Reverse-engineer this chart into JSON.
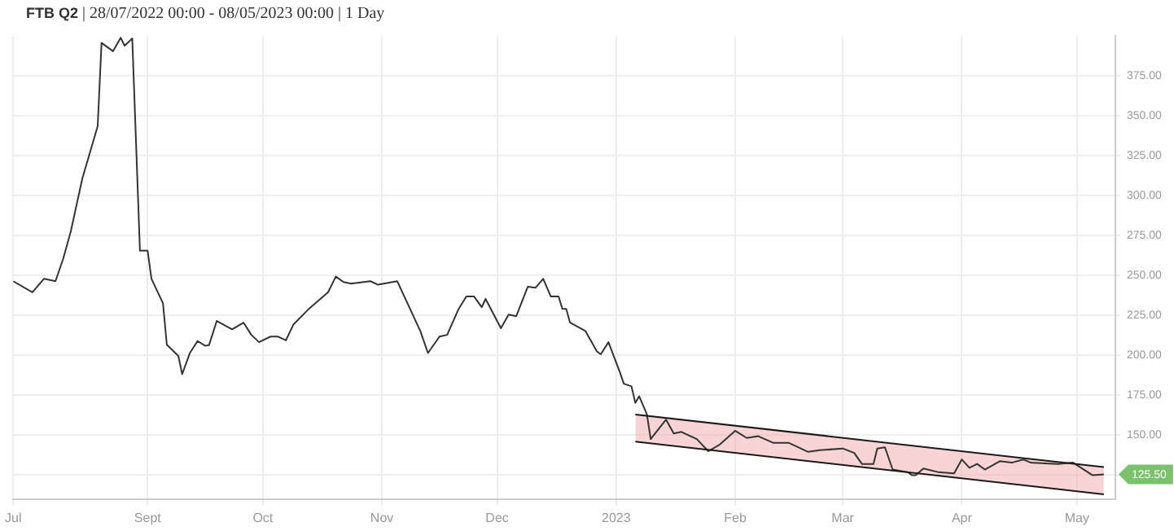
{
  "chart_data": {
    "type": "line",
    "title": "FTB Q2 | 28/07/2022 00:00 - 08/05/2023 00:00 | 1 Day",
    "xlim": [
      "2022-07-28",
      "2023-05-11"
    ],
    "xticks": [
      {
        "value": "2022-07-28",
        "label": "Jul"
      },
      {
        "value": "2022-09-01",
        "label": "Sept"
      },
      {
        "value": "2022-10-01",
        "label": "Oct"
      },
      {
        "value": "2022-11-01",
        "label": "Nov"
      },
      {
        "value": "2022-12-01",
        "label": "Dec"
      },
      {
        "value": "2023-01-01",
        "label": "2023"
      },
      {
        "value": "2023-02-01",
        "label": "Feb"
      },
      {
        "value": "2023-03-01",
        "label": "Mar"
      },
      {
        "value": "2023-04-01",
        "label": "Apr"
      },
      {
        "value": "2023-05-01",
        "label": "May"
      }
    ],
    "ylim": [
      110,
      400
    ],
    "yticks": [
      {
        "value": 125,
        "label": null
      },
      {
        "value": 150,
        "label": "150.00"
      },
      {
        "value": 175,
        "label": "175.00"
      },
      {
        "value": 200,
        "label": "200.00"
      },
      {
        "value": 225,
        "label": "225.00"
      },
      {
        "value": 250,
        "label": "250.00"
      },
      {
        "value": 275,
        "label": "275.00"
      },
      {
        "value": 300,
        "label": "300.00"
      },
      {
        "value": 325,
        "label": "325.00"
      },
      {
        "value": 350,
        "label": "350.00"
      },
      {
        "value": 375,
        "label": "375.00"
      }
    ],
    "grid": true,
    "legend": false,
    "marker": "none",
    "line_style": "solid",
    "annotations": [
      {
        "text": "125.50",
        "x": "2023-05-08",
        "y": 125.5
      }
    ],
    "series": [
      {
        "color": "#333333",
        "x": [
          "2022-07-28",
          "2022-08-02",
          "2022-08-05",
          "2022-08-08",
          "2022-08-10",
          "2022-08-12",
          "2022-08-15",
          "2022-08-19",
          "2022-08-20",
          "2022-08-23",
          "2022-08-25",
          "2022-08-26",
          "2022-08-28",
          "2022-08-30",
          "2022-09-01",
          "2022-09-02",
          "2022-09-05",
          "2022-09-06",
          "2022-09-09",
          "2022-09-10",
          "2022-09-12",
          "2022-09-14",
          "2022-09-16",
          "2022-09-17",
          "2022-09-19",
          "2022-09-23",
          "2022-09-26",
          "2022-09-28",
          "2022-09-30",
          "2022-10-03",
          "2022-10-05",
          "2022-10-07",
          "2022-10-09",
          "2022-10-13",
          "2022-10-18",
          "2022-10-20",
          "2022-10-22",
          "2022-10-24",
          "2022-10-29",
          "2022-10-31",
          "2022-11-05",
          "2022-11-07",
          "2022-11-11",
          "2022-11-13",
          "2022-11-16",
          "2022-11-18",
          "2022-11-21",
          "2022-11-23",
          "2022-11-25",
          "2022-11-27",
          "2022-11-28",
          "2022-12-02",
          "2022-12-04",
          "2022-12-06",
          "2022-12-09",
          "2022-12-11",
          "2022-12-13",
          "2022-12-15",
          "2022-12-17",
          "2022-12-18",
          "2022-12-19",
          "2022-12-20",
          "2022-12-24",
          "2022-12-27",
          "2022-12-28",
          "2022-12-30",
          "2023-01-02",
          "2023-01-03",
          "2023-01-05",
          "2023-01-06",
          "2023-01-07",
          "2023-01-09",
          "2023-01-10",
          "2023-01-14",
          "2023-01-16",
          "2023-01-18",
          "2023-01-22",
          "2023-01-25",
          "2023-01-28",
          "2023-02-01",
          "2023-02-04",
          "2023-02-07",
          "2023-02-11",
          "2023-02-15",
          "2023-02-20",
          "2023-02-23",
          "2023-03-01",
          "2023-03-04",
          "2023-03-06",
          "2023-03-09",
          "2023-03-10",
          "2023-03-12",
          "2023-03-14",
          "2023-03-18",
          "2023-03-19",
          "2023-03-20",
          "2023-03-22",
          "2023-03-26",
          "2023-03-30",
          "2023-04-01",
          "2023-04-03",
          "2023-04-05",
          "2023-04-07",
          "2023-04-11",
          "2023-04-14",
          "2023-04-17",
          "2023-04-19",
          "2023-04-26",
          "2023-04-30",
          "2023-05-05",
          "2023-05-08"
        ],
        "values": [
          246.5,
          239.6,
          248,
          246.5,
          260.4,
          277.8,
          310.8,
          343.7,
          395.8,
          390.6,
          399,
          394,
          398.6,
          265.6,
          265.6,
          248,
          232.7,
          206.7,
          199.7,
          188.2,
          201.5,
          209,
          206,
          206.5,
          221.6,
          216.4,
          220.5,
          212.9,
          208.3,
          211.8,
          211.8,
          209.4,
          219.5,
          229.2,
          239.6,
          249.4,
          246,
          245,
          246.5,
          244.3,
          246.5,
          236.1,
          215.3,
          201.5,
          211.8,
          212.9,
          229.2,
          236.9,
          236.9,
          230.2,
          235.4,
          217,
          225.6,
          224.6,
          243.1,
          242.4,
          248,
          236.9,
          236.9,
          229.2,
          229.2,
          220.5,
          215.3,
          202.5,
          200.7,
          208.3,
          189.3,
          182.3,
          180.6,
          170.2,
          174.4,
          163.2,
          147.6,
          159.8,
          151.1,
          152.1,
          147.6,
          140,
          144.2,
          152.8,
          148.3,
          149.4,
          145.2,
          145.2,
          139.6,
          140.6,
          141.7,
          138.9,
          132,
          132,
          141.7,
          142.4,
          128.5,
          126.8,
          125,
          125,
          129.2,
          126.8,
          126.1,
          134.8,
          129.6,
          132,
          128.5,
          133.8,
          132.8,
          134.8,
          132.8,
          132,
          132.8,
          125,
          125.5
        ]
      },
      {
        "type": "line",
        "color": "#1a1a1a",
        "x": [
          "2023-01-06",
          "2023-05-08"
        ],
        "values": [
          163,
          130
        ],
        "lower": [
          146,
          113
        ],
        "upper": [
          163,
          130
        ]
      },
      {
        "type": "line",
        "color": "#1a1a1a",
        "x": [
          "2023-01-06",
          "2023-05-08"
        ],
        "values": [
          146,
          113
        ]
      }
    ]
  }
}
